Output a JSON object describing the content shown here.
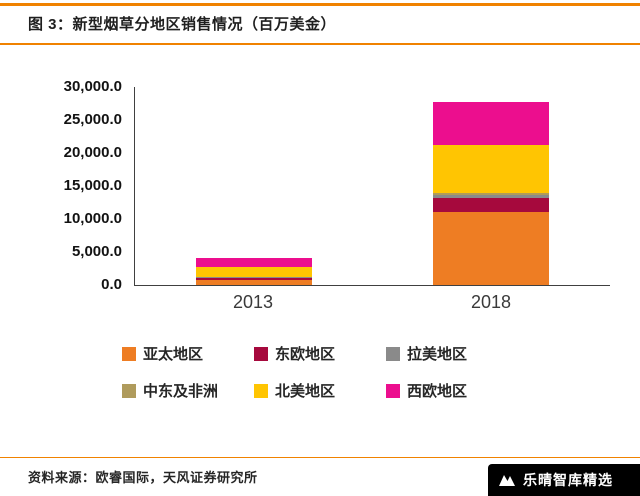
{
  "header": {
    "title": "图 3：新型烟草分地区销售情况（百万美金）"
  },
  "chart_data": {
    "type": "bar",
    "stacked": true,
    "title": "新型烟草分地区销售情况（百万美金）",
    "categories": [
      "2013",
      "2018"
    ],
    "series": [
      {
        "name": "亚太地区",
        "color": "#EE7D23",
        "values": [
          800,
          11000
        ]
      },
      {
        "name": "东欧地区",
        "color": "#A6093D",
        "values": [
          250,
          2200
        ]
      },
      {
        "name": "拉美地区",
        "color": "#8A8A8A",
        "values": [
          100,
          500
        ]
      },
      {
        "name": "中东及非洲",
        "color": "#AF9B5C",
        "values": [
          100,
          200
        ]
      },
      {
        "name": "北美地区",
        "color": "#FFC502",
        "values": [
          1550,
          7300
        ]
      },
      {
        "name": "西欧地区",
        "color": "#EC0E8E",
        "values": [
          1300,
          6500
        ]
      }
    ],
    "ylim": [
      0,
      30000
    ],
    "ytick_labels": [
      "30,000.0",
      "25,000.0",
      "20,000.0",
      "15,000.0",
      "10,000.0",
      "5,000.0",
      "0.0"
    ],
    "grid": false,
    "legend_position": "bottom"
  },
  "footer": {
    "source": "资料来源：欧睿国际，天风证券研究所",
    "watermark": "乐晴智库精选"
  },
  "colors": {
    "accent": "#F08200"
  }
}
